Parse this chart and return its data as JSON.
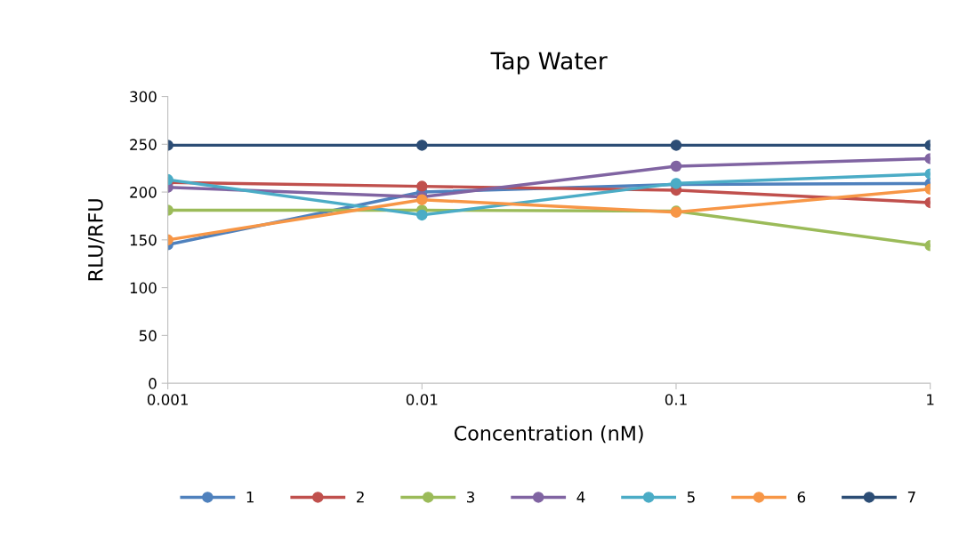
{
  "chart_data": {
    "type": "line",
    "title": "Tap Water",
    "xlabel": "Concentration (nM)",
    "ylabel": "RLU/RFU",
    "x": [
      0.001,
      0.01,
      0.1,
      1
    ],
    "log": "x",
    "xlim": [
      0.001,
      1
    ],
    "xticks": [
      {
        "value": 0.001,
        "label": "0.001"
      },
      {
        "value": 0.01,
        "label": "0.01"
      },
      {
        "value": 0.1,
        "label": "0.1"
      },
      1
    ],
    "ylim": [
      0,
      300
    ],
    "yticks": [
      0,
      50,
      100,
      150,
      200,
      250,
      300
    ],
    "grid": false,
    "legend": "bottom",
    "marker": "circle",
    "line_style": "solid",
    "series": [
      {
        "name": "1",
        "color": "#4f81bd",
        "values": [
          145,
          200,
          208,
          209
        ]
      },
      {
        "name": "2",
        "color": "#c0504d",
        "values": [
          210,
          206,
          202,
          189
        ]
      },
      {
        "name": "3",
        "color": "#9bbb59",
        "values": [
          181,
          181,
          180,
          144
        ]
      },
      {
        "name": "4",
        "color": "#8064a2",
        "values": [
          205,
          195,
          227,
          235
        ]
      },
      {
        "name": "5",
        "color": "#4bacc6",
        "values": [
          213,
          176,
          209,
          219
        ]
      },
      {
        "name": "6",
        "color": "#f79646",
        "values": [
          150,
          192,
          179,
          203
        ]
      },
      {
        "name": "7",
        "color": "#2c4d75",
        "values": [
          249,
          249,
          249,
          249
        ]
      }
    ]
  }
}
